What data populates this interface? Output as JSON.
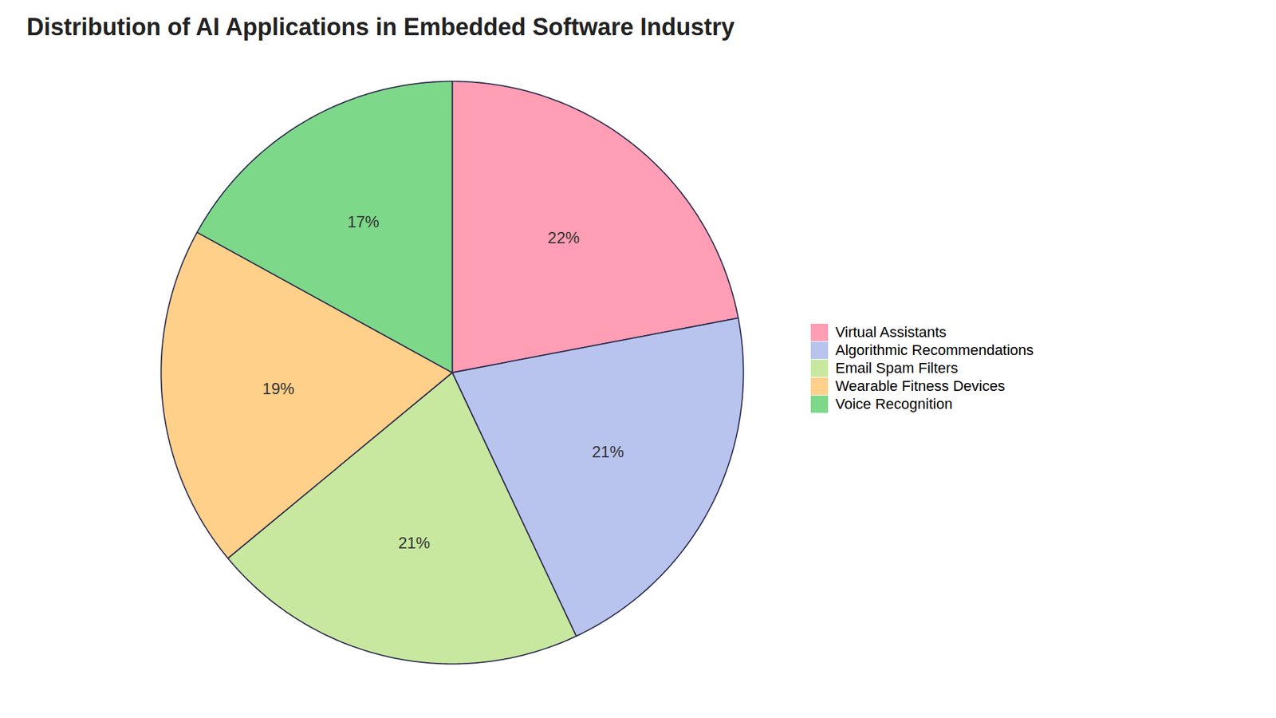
{
  "chart_data": {
    "type": "pie",
    "title": "Distribution of AI Applications in Embedded Software Industry",
    "categories": [
      "Virtual Assistants",
      "Algorithmic Recommendations",
      "Email Spam Filters",
      "Wearable Fitness Devices",
      "Voice Recognition"
    ],
    "values": [
      22,
      21,
      21,
      19,
      17
    ],
    "value_labels": [
      "22%",
      "21%",
      "21%",
      "19%",
      "17%"
    ],
    "colors": [
      "#FF9EB5",
      "#B8C4EE",
      "#C8E8A0",
      "#FFD08A",
      "#7DD88A"
    ],
    "data_labels": true,
    "legend": "right"
  }
}
